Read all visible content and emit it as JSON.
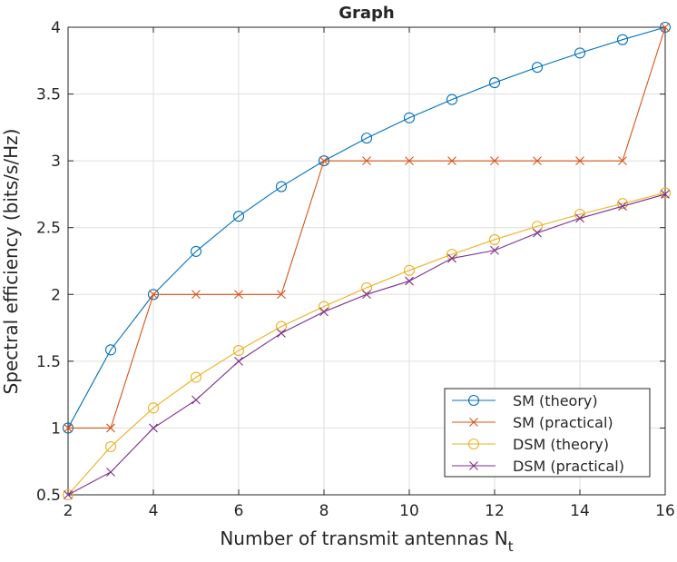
{
  "chart_data": {
    "type": "line",
    "title": "Graph",
    "xlabel": "Number of transmit antennas N",
    "xlabel_subscript": "t",
    "ylabel": "Spectral efficiency (bits/s/Hz)",
    "xlim": [
      2,
      16
    ],
    "ylim": [
      0.5,
      4
    ],
    "xticks": [
      2,
      4,
      6,
      8,
      10,
      12,
      14,
      16
    ],
    "yticks": [
      0.5,
      1,
      1.5,
      2,
      2.5,
      3,
      3.5,
      4
    ],
    "ytick_labels": [
      "0.5",
      "1",
      "1.5",
      "2",
      "2.5",
      "3",
      "3.5",
      "4"
    ],
    "grid": true,
    "legend_position": "bottom-right",
    "x": [
      2,
      3,
      4,
      5,
      6,
      7,
      8,
      9,
      10,
      11,
      12,
      13,
      14,
      15,
      16
    ],
    "series": [
      {
        "name": "SM (theory)",
        "color": "#0072BD",
        "marker": "circle",
        "values": [
          1,
          1.585,
          2,
          2.322,
          2.585,
          2.807,
          3,
          3.17,
          3.322,
          3.459,
          3.585,
          3.7,
          3.807,
          3.907,
          4
        ]
      },
      {
        "name": "SM (practical)",
        "color": "#D95319",
        "marker": "x",
        "values": [
          1,
          1,
          2,
          2,
          2,
          2,
          3,
          3,
          3,
          3,
          3,
          3,
          3,
          3,
          4
        ]
      },
      {
        "name": "DSM (theory)",
        "color": "#EDB120",
        "marker": "circle",
        "values": [
          0.5,
          0.86,
          1.15,
          1.38,
          1.58,
          1.76,
          1.91,
          2.05,
          2.18,
          2.3,
          2.41,
          2.51,
          2.6,
          2.68,
          2.76
        ]
      },
      {
        "name": "DSM (practical)",
        "color": "#7E2F8E",
        "marker": "x",
        "values": [
          0.5,
          0.67,
          1.0,
          1.21,
          1.5,
          1.71,
          1.87,
          2.0,
          2.1,
          2.27,
          2.33,
          2.46,
          2.57,
          2.66,
          2.75
        ]
      }
    ]
  }
}
